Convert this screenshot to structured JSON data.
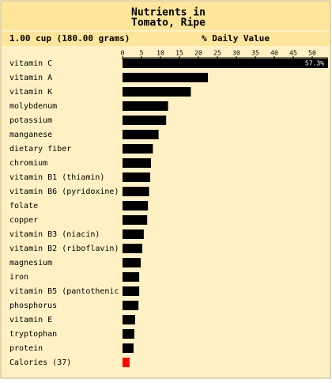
{
  "chart_data": {
    "type": "barh",
    "title_lines": [
      "Nutrients in",
      "Tomato, Ripe"
    ],
    "serving": "1.00 cup (180.00 grams)",
    "xlabel": "% Daily Value",
    "categories": [
      "vitamin C",
      "vitamin A",
      "vitamin K",
      "molybdenum",
      "potassium",
      "manganese",
      "dietary fiber",
      "chromium",
      "vitamin B1 (thiamin)",
      "vitamin B6 (pyridoxine)",
      "folate",
      "copper",
      "vitamin B3 (niacin)",
      "vitamin B2 (riboflavin)",
      "magnesium",
      "iron",
      "vitamin B5 (pantothenic",
      "phosphorus",
      "vitamin E",
      "tryptophan",
      "protein",
      "Calories (37)"
    ],
    "values": [
      57.3,
      22.5,
      18,
      12,
      11.5,
      9.5,
      8,
      7.5,
      7.3,
      7,
      6.7,
      6.5,
      5.6,
      5.2,
      4.8,
      4.4,
      4.4,
      4.2,
      3.3,
      3.1,
      2.9,
      1.85
    ],
    "value_labels": [
      "57.3%",
      null,
      null,
      null,
      null,
      null,
      null,
      null,
      null,
      null,
      null,
      null,
      null,
      null,
      null,
      null,
      null,
      null,
      null,
      null,
      null,
      null
    ],
    "bar_colors": [
      "#000000",
      "#000000",
      "#000000",
      "#000000",
      "#000000",
      "#000000",
      "#000000",
      "#000000",
      "#000000",
      "#000000",
      "#000000",
      "#000000",
      "#000000",
      "#000000",
      "#000000",
      "#000000",
      "#000000",
      "#000000",
      "#000000",
      "#000000",
      "#000000",
      "#ff0000"
    ],
    "xlim": [
      0,
      50
    ],
    "xticks": [
      0,
      5,
      10,
      15,
      20,
      25,
      30,
      35,
      40,
      45,
      50
    ]
  }
}
